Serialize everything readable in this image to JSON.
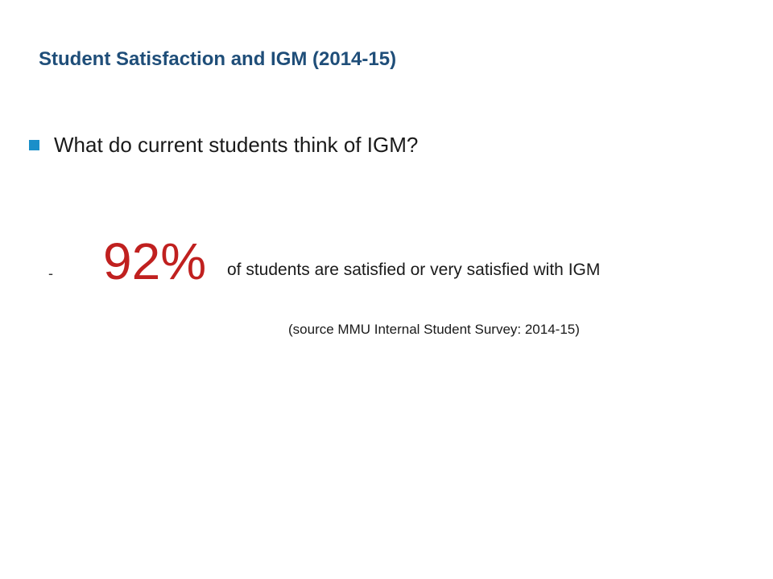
{
  "slide": {
    "title": "Student Satisfaction and IGM (2014-15)",
    "bullet": {
      "text": "What do current students think of IGM?"
    },
    "stat": {
      "dash": "-",
      "percent": "92%",
      "description": "of students are satisfied or very satisfied with IGM"
    },
    "source": "(source MMU Internal Student Survey: 2014-15)",
    "colors": {
      "title": "#1f4e79",
      "bullet_marker": "#1a8fc9",
      "highlight_percent": "#c0201f",
      "body_text": "#1a1a1a",
      "background": "#ffffff"
    },
    "icons": {
      "bullet_marker": "square-bullet-icon"
    }
  }
}
